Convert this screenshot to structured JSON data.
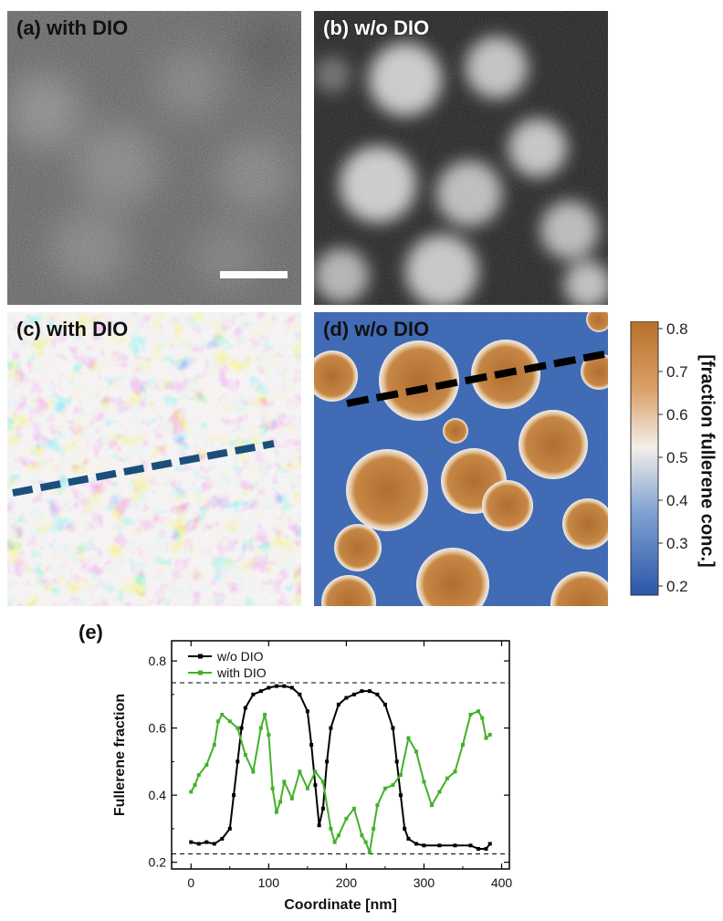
{
  "panels": {
    "a": {
      "label": "(a) with DIO"
    },
    "b": {
      "label": "(b) w/o DIO"
    },
    "c": {
      "label": "(c) with DIO"
    },
    "d": {
      "label": "(d) w/o DIO"
    },
    "e": {
      "label": "(e)"
    }
  },
  "colorbar": {
    "title": "[fraction fullerene conc.]",
    "ticks": [
      "0.8",
      "0.7",
      "0.6",
      "0.5",
      "0.4",
      "0.3",
      "0.2"
    ],
    "colors": {
      "high": "#b8702a",
      "mid": "#f2efe9",
      "low": "#2a56a8"
    }
  },
  "chart_data": {
    "type": "line",
    "title": "",
    "xlabel": "Coordinate [nm]",
    "ylabel": "Fullerene fraction",
    "xlim": [
      -25,
      410
    ],
    "ylim": [
      0.18,
      0.86
    ],
    "xticks": [
      0,
      100,
      200,
      300,
      400
    ],
    "yticks": [
      0.2,
      0.4,
      0.6,
      0.8
    ],
    "legend_position": "top-left",
    "reference_lines": [
      0.735,
      0.225
    ],
    "series": [
      {
        "name": "w/o DIO",
        "color": "#000000",
        "x": [
          0,
          10,
          20,
          30,
          40,
          50,
          55,
          60,
          65,
          70,
          80,
          90,
          100,
          110,
          120,
          130,
          140,
          150,
          155,
          160,
          165,
          170,
          175,
          180,
          190,
          200,
          210,
          220,
          230,
          240,
          250,
          260,
          265,
          270,
          275,
          280,
          290,
          300,
          320,
          340,
          360,
          370,
          380,
          385
        ],
        "y": [
          0.26,
          0.255,
          0.26,
          0.255,
          0.27,
          0.3,
          0.4,
          0.5,
          0.6,
          0.66,
          0.7,
          0.71,
          0.72,
          0.725,
          0.725,
          0.72,
          0.7,
          0.65,
          0.55,
          0.43,
          0.31,
          0.36,
          0.5,
          0.6,
          0.67,
          0.69,
          0.7,
          0.71,
          0.71,
          0.7,
          0.67,
          0.6,
          0.5,
          0.4,
          0.3,
          0.27,
          0.255,
          0.25,
          0.25,
          0.25,
          0.25,
          0.24,
          0.24,
          0.255
        ]
      },
      {
        "name": "with DIO",
        "color": "#44b02a",
        "x": [
          0,
          5,
          10,
          20,
          30,
          35,
          40,
          50,
          60,
          70,
          80,
          90,
          95,
          100,
          105,
          110,
          115,
          120,
          130,
          140,
          150,
          160,
          170,
          180,
          185,
          190,
          200,
          210,
          220,
          225,
          230,
          235,
          240,
          250,
          260,
          270,
          280,
          290,
          300,
          310,
          320,
          330,
          340,
          350,
          360,
          370,
          375,
          380,
          385
        ],
        "y": [
          0.41,
          0.43,
          0.46,
          0.49,
          0.55,
          0.62,
          0.64,
          0.62,
          0.6,
          0.52,
          0.47,
          0.6,
          0.64,
          0.58,
          0.42,
          0.35,
          0.38,
          0.44,
          0.39,
          0.47,
          0.42,
          0.47,
          0.44,
          0.3,
          0.26,
          0.28,
          0.33,
          0.36,
          0.28,
          0.26,
          0.23,
          0.3,
          0.37,
          0.42,
          0.43,
          0.46,
          0.57,
          0.53,
          0.44,
          0.37,
          0.41,
          0.45,
          0.47,
          0.55,
          0.64,
          0.65,
          0.63,
          0.57,
          0.58
        ]
      }
    ]
  }
}
